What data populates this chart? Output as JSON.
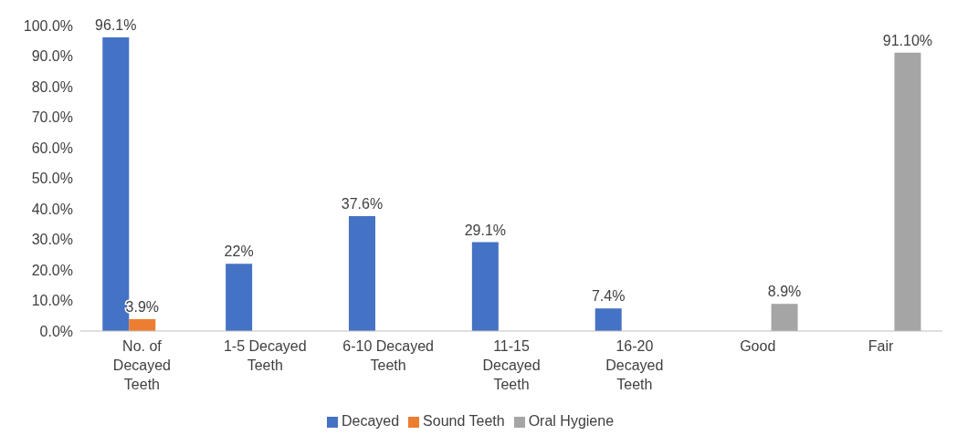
{
  "chart_data": {
    "type": "bar",
    "categories": [
      "No. of Decayed Teeth",
      "1-5 Decayed Teeth",
      "6-10 Decayed Teeth",
      "11-15 Decayed Teeth",
      "16-20 Decayed Teeth",
      "Good",
      "Fair"
    ],
    "series": [
      {
        "name": "Decayed",
        "color": "#4472c4",
        "values": [
          96.1,
          22,
          37.6,
          29.1,
          7.4,
          null,
          null
        ],
        "value_labels": [
          "96.1%",
          "22%",
          "37.6%",
          "29.1%",
          "7.4%",
          null,
          null
        ]
      },
      {
        "name": "Sound Teeth",
        "color": "#ed7d31",
        "values": [
          3.9,
          null,
          null,
          null,
          null,
          null,
          null
        ],
        "value_labels": [
          "3.9%",
          null,
          null,
          null,
          null,
          null,
          null
        ]
      },
      {
        "name": "Oral Hygiene",
        "color": "#a5a5a5",
        "values": [
          null,
          null,
          null,
          null,
          null,
          8.9,
          91.1
        ],
        "value_labels": [
          null,
          null,
          null,
          null,
          null,
          "8.9%",
          "91.10%"
        ]
      }
    ],
    "ylim": [
      0,
      100
    ],
    "yticks": [
      {
        "value": 0,
        "label": "0.0%"
      },
      {
        "value": 10,
        "label": "10.0%"
      },
      {
        "value": 20,
        "label": "20.0%"
      },
      {
        "value": 30,
        "label": "30.0%"
      },
      {
        "value": 40,
        "label": "40.0%"
      },
      {
        "value": 50,
        "label": "50.0%"
      },
      {
        "value": 60,
        "label": "60.0%"
      },
      {
        "value": 70,
        "label": "70.0%"
      },
      {
        "value": 80,
        "label": "80.0%"
      },
      {
        "value": 90,
        "label": "90.0%"
      },
      {
        "value": 100,
        "label": "100.0%"
      }
    ],
    "legend": "bottom"
  }
}
